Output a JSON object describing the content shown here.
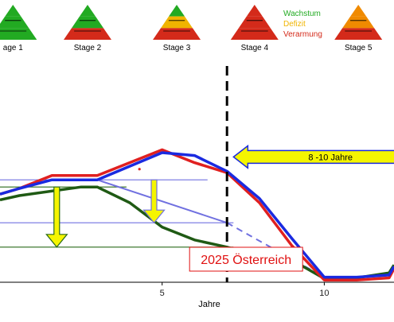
{
  "chart_data": {
    "type": "line",
    "xlabel": "Jahre",
    "ylabel": "",
    "xlim": [
      0,
      12.15
    ],
    "ylim": [
      0,
      10
    ],
    "x_ticks": [
      5,
      10
    ],
    "stages": [
      {
        "label": "age 1",
        "x": 0.4,
        "colors": [
          "#22aa22",
          "#22aa22",
          "#22aa22"
        ]
      },
      {
        "label": "Stage 2",
        "x": 2.7,
        "colors": [
          "#22aa22",
          "#22aa22",
          "#d42a1a"
        ]
      },
      {
        "label": "Stage 3",
        "x": 5.45,
        "colors": [
          "#22aa22",
          "#f0b400",
          "#d42a1a"
        ]
      },
      {
        "label": "Stage 4",
        "x": 7.85,
        "colors": [
          "#d42a1a",
          "#d42a1a",
          "#d42a1a"
        ]
      },
      {
        "label": "Stage 5",
        "x": 11.05,
        "colors": [
          "#f08a00",
          "#f08a00",
          "#d42a1a"
        ]
      }
    ],
    "legend": [
      {
        "label": "Wachstum",
        "color": "#22aa22"
      },
      {
        "label": "Defizit",
        "color": "#f0b400"
      },
      {
        "label": "Verarmung",
        "color": "#d42a1a"
      }
    ],
    "series": [
      {
        "color": "#e02020",
        "x": [
          0,
          0.6,
          1.6,
          3,
          5,
          6,
          7,
          8,
          9,
          10,
          11,
          12,
          12.15
        ],
        "y": [
          5.6,
          6.0,
          6.9,
          6.9,
          8.7,
          7.8,
          7.1,
          5.0,
          2.0,
          -0.4,
          -0.4,
          -0.25,
          0.4
        ]
      },
      {
        "color": "#1a2ae0",
        "x": [
          0,
          0.6,
          1.6,
          3,
          5,
          6,
          7,
          8,
          9,
          10,
          11,
          12,
          12.15
        ],
        "y": [
          5.6,
          6.0,
          6.6,
          6.6,
          8.5,
          8.3,
          7.2,
          5.3,
          2.5,
          -0.2,
          -0.2,
          -0.05,
          0.55
        ]
      },
      {
        "color": "#1f5a14",
        "x": [
          0,
          0.6,
          2.5,
          3,
          4,
          5,
          6,
          7,
          8,
          9,
          10,
          11,
          12,
          12.15
        ],
        "y": [
          5.2,
          5.5,
          6.1,
          6.1,
          5.0,
          3.3,
          2.4,
          1.9,
          1.2,
          1.0,
          -0.3,
          -0.25,
          0.1,
          0.65
        ]
      }
    ],
    "trend_line": {
      "color": "#7070e0",
      "x": [
        3,
        7,
        10
      ],
      "y": [
        6.6,
        3.6,
        -0.2
      ]
    },
    "reference_lines": [
      {
        "y": 6.6,
        "x": [
          0,
          6.4
        ],
        "color": "#7070e0"
      },
      {
        "y": 6.1,
        "x": [
          0,
          3.9
        ],
        "color": "#2a6a1a"
      },
      {
        "y": 3.6,
        "x": [
          0,
          7.2
        ],
        "color": "#7070e0"
      },
      {
        "y": 1.9,
        "x": [
          0,
          7.2
        ],
        "color": "#2a6a1a"
      }
    ],
    "arrows": [
      {
        "x": 1.75,
        "y_from": 6.1,
        "y_to": 1.9,
        "color": "#f5f500",
        "outline": "#2a6a1a"
      },
      {
        "x": 4.75,
        "y_from": 6.6,
        "y_to": 3.6,
        "color": "#f5f500",
        "outline": "#7070e0"
      }
    ],
    "time_arrow": {
      "label": "8 -10 Jahre",
      "x_from": 12.15,
      "x_to": 7.2,
      "y": 8.2
    },
    "annotations": [
      {
        "text": "2025 Österreich",
        "x": 7.0,
        "y": 0.35,
        "color": "#e01010"
      }
    ],
    "vertical_marker": {
      "x": 7.0
    },
    "grid": false
  }
}
